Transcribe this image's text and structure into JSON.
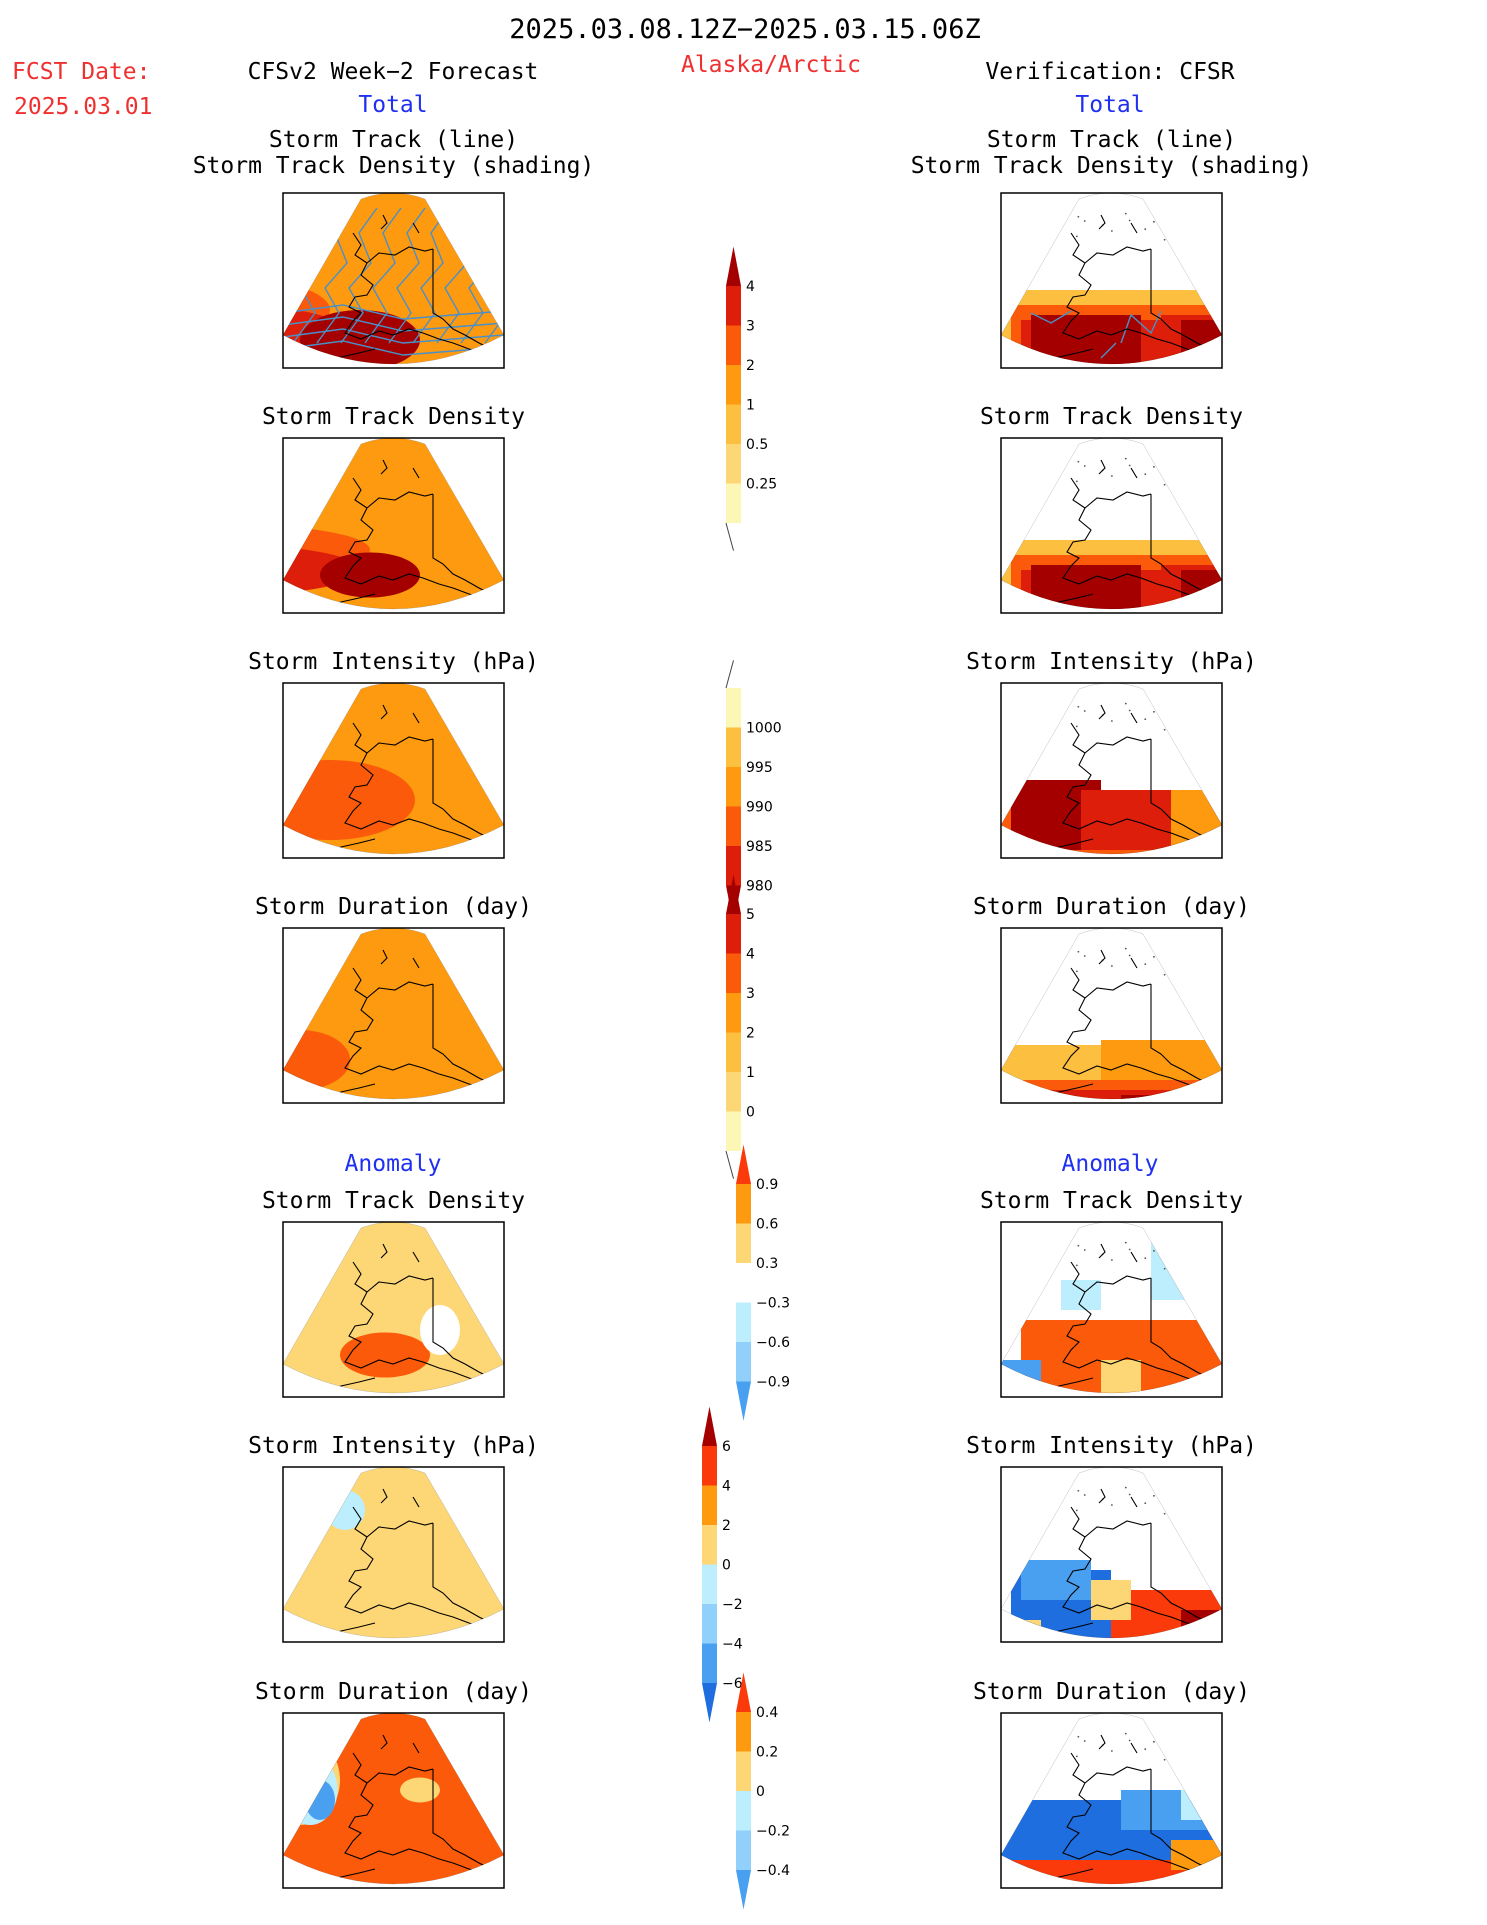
{
  "header": {
    "period": "2025.03.08.12Z−2025.03.15.06Z",
    "fcst_label": "FCST Date:",
    "fcst_date": "2025.03.01",
    "forecast_title": "CFSv2 Week−2 Forecast",
    "region": "Alaska/Arctic",
    "verification_title": "Verification: CFSR",
    "total_left": "Total",
    "total_right": "Total",
    "anomaly_left": "Anomaly",
    "anomaly_right": "Anomaly"
  },
  "panel_titles": {
    "track_line": "Storm Track (line)",
    "track_density_shading": "Storm Track Density (shading)",
    "track_density": "Storm Track Density",
    "intensity": "Storm Intensity (hPa)",
    "duration": "Storm Duration (day)"
  },
  "colors": {
    "lightest_yellow": "#fdf7b5",
    "light_yellow": "#fdd775",
    "light_orange": "#fdbf3f",
    "orange": "#fd9a10",
    "red_orange": "#fa5a0a",
    "red": "#dc1e0a",
    "dark_red": "#a50000",
    "light_cyan": "#bdeefd",
    "sky_blue": "#90d0fa",
    "blue": "#4aa0f0",
    "royal_blue": "#1e6ee0",
    "title_red": "#f03030",
    "title_blue": "#2030f0",
    "track_line": "#4a90c8"
  },
  "colorbars": [
    {
      "name": "total-density-colorbar",
      "labels": [
        "4",
        "3",
        "2",
        "1",
        "0.5",
        "0.25"
      ],
      "colors": [
        "#a50000",
        "#dc1e0a",
        "#fa5a0a",
        "#fd9a10",
        "#fdbf3f",
        "#fdd775",
        "#fdf7b5"
      ],
      "ext": "top"
    },
    {
      "name": "total-intensity-colorbar",
      "labels": [
        "1000",
        "995",
        "990",
        "985",
        "980"
      ],
      "colors": [
        "#fdf7b5",
        "#fdbf3f",
        "#fd9a10",
        "#fa5a0a",
        "#dc1e0a",
        "#a50000"
      ],
      "ext": "bottom"
    },
    {
      "name": "total-duration-colorbar",
      "labels": [
        "5",
        "4",
        "3",
        "2",
        "1",
        "0"
      ],
      "colors": [
        "#a50000",
        "#dc1e0a",
        "#fa5a0a",
        "#fd9a10",
        "#fdbf3f",
        "#fdd775",
        "#fdf7b5"
      ],
      "ext": "top"
    },
    {
      "name": "anomaly-density-colorbar",
      "labels": [
        "0.9",
        "0.6",
        "0.3",
        "−0.3",
        "−0.6",
        "−0.9"
      ],
      "colors": [
        "#fa3a0a",
        "#fd9a10",
        "#fdd775",
        "#ffffff",
        "#bdeefd",
        "#90d0fa",
        "#4aa0f0"
      ],
      "ext": "both"
    },
    {
      "name": "anomaly-intensity-colorbar",
      "labels": [
        "6",
        "4",
        "2",
        "0",
        "−2",
        "−4",
        "−6"
      ],
      "colors": [
        "#a50000",
        "#fa3a0a",
        "#fd9a10",
        "#fdd775",
        "#bdeefd",
        "#90d0fa",
        "#4aa0f0",
        "#1e6ee0"
      ],
      "ext": "both"
    },
    {
      "name": "anomaly-duration-colorbar",
      "labels": [
        "0.4",
        "0.2",
        "0",
        "−0.2",
        "−0.4"
      ],
      "colors": [
        "#fa3a0a",
        "#fd9a10",
        "#fdd775",
        "#bdeefd",
        "#90d0fa",
        "#4aa0f0"
      ],
      "ext": "both"
    }
  ],
  "panels": [
    {
      "name": "fcst-track-line-map",
      "title": [
        "track_line",
        "track_density_shading"
      ],
      "style": "fcst",
      "bg": "#fd9a10",
      "blobs": [
        [
          "#fdd775",
          205,
          290,
          70,
          60
        ],
        [
          "#fdf7b5",
          245,
          210,
          45,
          40
        ],
        [
          "#fdbf3f",
          130,
          320,
          60,
          50
        ],
        [
          "#fa5a0a",
          210,
          310,
          240,
          70
        ],
        [
          "#dc1e0a",
          230,
          335,
          240,
          60
        ],
        [
          "#a50000",
          130,
          345,
          150,
          55
        ],
        [
          "#a50000",
          360,
          340,
          120,
          60
        ]
      ],
      "tracks": true
    },
    {
      "name": "fcst-track-density-map",
      "title": [
        "track_density"
      ],
      "style": "fcst",
      "bg": "#fd9a10",
      "blobs": [
        [
          "#fdbf3f",
          220,
          520,
          80,
          120
        ],
        [
          "#fdf7b5",
          220,
          450,
          40,
          60
        ],
        [
          "#fa5a0a",
          240,
          550,
          260,
          50
        ],
        [
          "#dc1e0a",
          230,
          570,
          260,
          50
        ],
        [
          "#a50000",
          150,
          585,
          150,
          50
        ],
        [
          "#a50000",
          370,
          575,
          100,
          45
        ]
      ]
    },
    {
      "name": "fcst-intensity-map",
      "title": [
        "intensity"
      ],
      "style": "fcst",
      "bg": "#fd9a10",
      "blobs": [
        [
          "#fdf7b5",
          240,
          720,
          70,
          55
        ],
        [
          "#fdbf3f",
          230,
          765,
          60,
          40
        ],
        [
          "#fa5a0a",
          330,
          800,
          170,
          80
        ],
        [
          "#dc1e0a",
          180,
          820,
          170,
          100
        ],
        [
          "#a50000",
          150,
          820,
          130,
          85
        ]
      ]
    },
    {
      "name": "fcst-duration-map",
      "title": [
        "duration"
      ],
      "style": "fcst",
      "bg": "#fd9a10",
      "blobs": [
        [
          "#fa5a0a",
          150,
          1040,
          130,
          90
        ],
        [
          "#fa5a0a",
          300,
          1060,
          100,
          60
        ],
        [
          "#fdbf3f",
          255,
          975,
          50,
          40
        ]
      ]
    },
    {
      "name": "fcst-anomaly-density-map",
      "title": [
        "track_density"
      ],
      "style": "fcst",
      "bg": "#fdd775",
      "blobs": [
        [
          "#ffffff",
          150,
          1300,
          80,
          90
        ],
        [
          "#fdbf3f",
          240,
          1320,
          70,
          60
        ],
        [
          "#fa5a0a",
          180,
          1370,
          130,
          45
        ],
        [
          "#fa5a0a",
          385,
          1355,
          90,
          45
        ],
        [
          "#bdeefd",
          285,
          1400,
          80,
          30
        ],
        [
          "#4aa0f0",
          285,
          1410,
          40,
          15
        ],
        [
          "#ffffff",
          440,
          1330,
          40,
          50
        ]
      ]
    },
    {
      "name": "fcst-anomaly-intensity-map",
      "title": [
        "intensity"
      ],
      "style": "fcst",
      "bg": "#fdd775",
      "blobs": [
        [
          "#bdeefd",
          160,
          1590,
          140,
          100
        ],
        [
          "#90d0fa",
          150,
          1600,
          110,
          80
        ],
        [
          "#1e6ee0",
          125,
          1605,
          85,
          45
        ],
        [
          "#fa5a0a",
          210,
          1500,
          50,
          35
        ],
        [
          "#bdeefd",
          345,
          1510,
          40,
          40
        ],
        [
          "#fdbf3f",
          310,
          1470,
          40,
          20
        ]
      ]
    },
    {
      "name": "fcst-anomaly-duration-map",
      "title": [
        "duration"
      ],
      "style": "fcst",
      "bg": "#fa5a0a",
      "blobs": [
        [
          "#fdd775",
          300,
          1780,
          80,
          90
        ],
        [
          "#bdeefd",
          310,
          1790,
          55,
          70
        ],
        [
          "#4aa0f0",
          320,
          1800,
          30,
          40
        ],
        [
          "#fdd775",
          275,
          1735,
          50,
          20
        ],
        [
          "#fdd775",
          420,
          1790,
          40,
          25
        ]
      ]
    },
    {
      "name": "cfsr-track-line-map",
      "title": [
        "track_line",
        "track_density_shading"
      ],
      "style": "obs",
      "cells": [
        [
          "#fdbf3f",
          100,
          290,
          380,
          60
        ],
        [
          "#fa5a0a",
          110,
          305,
          370,
          50
        ],
        [
          "#dc1e0a",
          120,
          320,
          160,
          50
        ],
        [
          "#a50000",
          130,
          315,
          110,
          55
        ],
        [
          "#dc1e0a",
          260,
          315,
          200,
          55
        ],
        [
          "#a50000",
          280,
          320,
          170,
          55
        ]
      ],
      "tracks": "obs"
    },
    {
      "name": "cfsr-track-density-map",
      "title": [
        "track_density"
      ],
      "style": "obs",
      "cells": [
        [
          "#fdbf3f",
          100,
          540,
          380,
          60
        ],
        [
          "#fa5a0a",
          110,
          555,
          370,
          50
        ],
        [
          "#dc1e0a",
          120,
          570,
          160,
          50
        ],
        [
          "#a50000",
          130,
          565,
          110,
          55
        ],
        [
          "#dc1e0a",
          260,
          565,
          200,
          55
        ],
        [
          "#a50000",
          280,
          570,
          170,
          55
        ]
      ]
    },
    {
      "name": "cfsr-intensity-map",
      "title": [
        "intensity"
      ],
      "style": "obs",
      "cells": [
        [
          "#fa5a0a",
          100,
          795,
          380,
          60
        ],
        [
          "#fd9a10",
          250,
          790,
          230,
          70
        ],
        [
          "#a50000",
          110,
          780,
          90,
          70
        ],
        [
          "#dc1e0a",
          180,
          790,
          90,
          60
        ],
        [
          "#fdbf3f",
          380,
          820,
          40,
          30
        ],
        [
          "#fdf7b5",
          430,
          830,
          20,
          20
        ]
      ]
    },
    {
      "name": "cfsr-duration-map",
      "title": [
        "duration"
      ],
      "style": "obs",
      "cells": [
        [
          "#fdbf3f",
          100,
          1045,
          380,
          60
        ],
        [
          "#fd9a10",
          200,
          1040,
          200,
          50
        ],
        [
          "#fa5a0a",
          110,
          1080,
          200,
          30
        ],
        [
          "#dc1e0a",
          130,
          1090,
          150,
          25
        ],
        [
          "#a50000",
          220,
          1095,
          60,
          20
        ],
        [
          "#fdf7b5",
          400,
          1080,
          40,
          20
        ]
      ]
    },
    {
      "name": "cfsr-anomaly-density-map",
      "title": [
        "track_density"
      ],
      "style": "obs",
      "cells": [
        [
          "#bdeefd",
          250,
          1240,
          180,
          60
        ],
        [
          "#fa5a0a",
          120,
          1320,
          360,
          75
        ],
        [
          "#4aa0f0",
          100,
          1360,
          40,
          50
        ],
        [
          "#1e6ee0",
          105,
          1375,
          20,
          30
        ],
        [
          "#fdd775",
          200,
          1360,
          40,
          50
        ],
        [
          "#bdeefd",
          440,
          1340,
          40,
          40
        ],
        [
          "#4aa0f0",
          455,
          1360,
          25,
          30
        ],
        [
          "#bdeefd",
          160,
          1280,
          40,
          30
        ],
        [
          "#ffffff",
          420,
          1320,
          40,
          30
        ]
      ]
    },
    {
      "name": "cfsr-anomaly-intensity-map",
      "title": [
        "intensity"
      ],
      "style": "obs",
      "cells": [
        [
          "#fa3a0a",
          200,
          1590,
          280,
          70
        ],
        [
          "#a50000",
          280,
          1610,
          200,
          50
        ],
        [
          "#1e6ee0",
          110,
          1570,
          100,
          80
        ],
        [
          "#4aa0f0",
          120,
          1560,
          70,
          40
        ],
        [
          "#fdd775",
          190,
          1580,
          40,
          40
        ],
        [
          "#fdbf3f",
          330,
          1560,
          100,
          40
        ],
        [
          "#fdd775",
          110,
          1620,
          30,
          30
        ]
      ]
    },
    {
      "name": "cfsr-anomaly-duration-map",
      "title": [
        "duration"
      ],
      "style": "obs",
      "cells": [
        [
          "#1e6ee0",
          100,
          1800,
          380,
          70
        ],
        [
          "#4aa0f0",
          220,
          1790,
          160,
          40
        ],
        [
          "#bdeefd",
          280,
          1790,
          60,
          30
        ],
        [
          "#fa3a0a",
          100,
          1860,
          240,
          35
        ],
        [
          "#fd9a10",
          270,
          1840,
          60,
          30
        ],
        [
          "#fa3a0a",
          430,
          1840,
          50,
          40
        ],
        [
          "#fdd775",
          380,
          1820,
          40,
          30
        ]
      ]
    }
  ]
}
